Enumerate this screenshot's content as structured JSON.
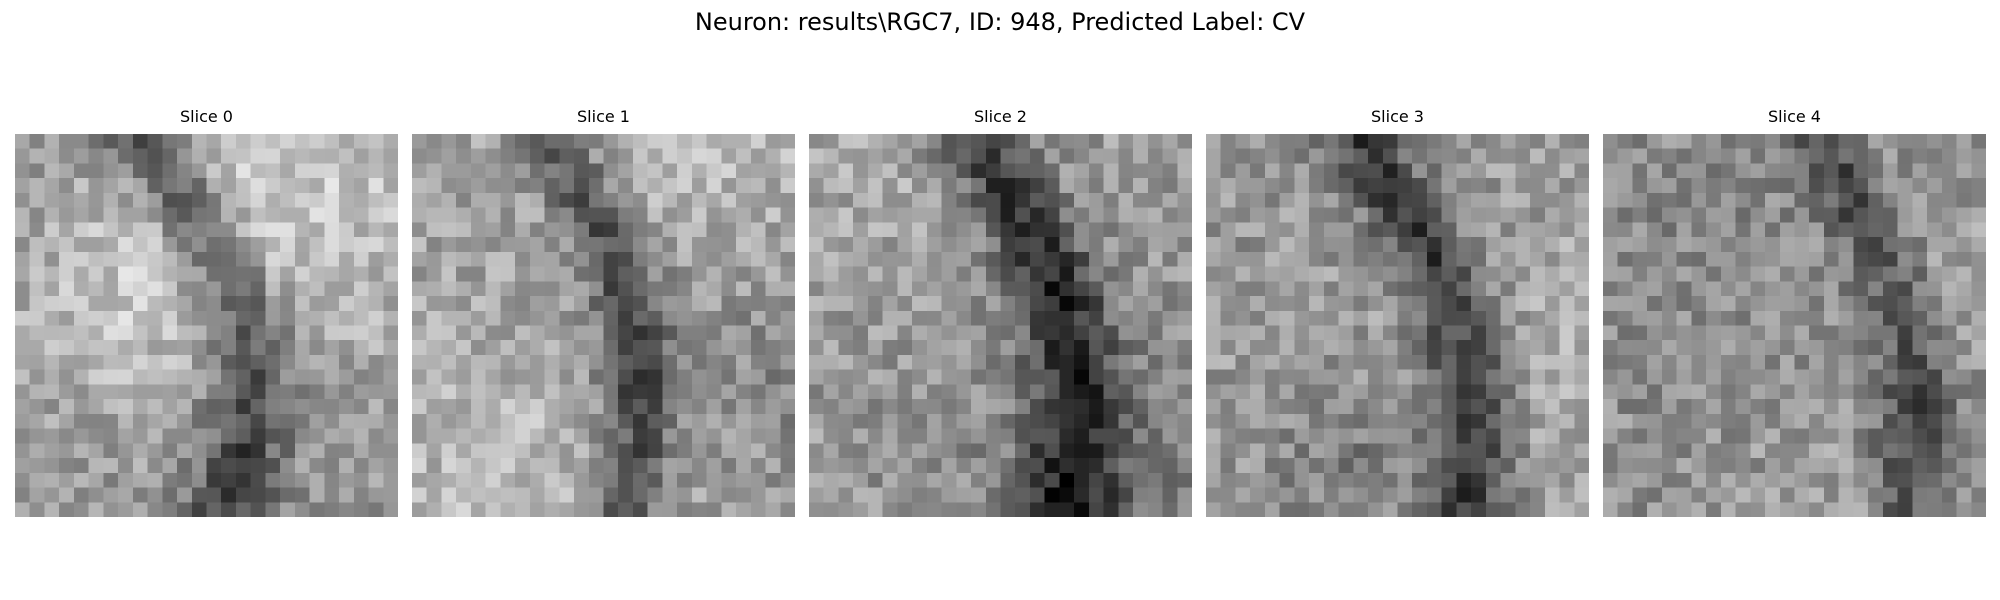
{
  "figure": {
    "title": "Neuron: results\\RGC7, ID: 948, Predicted Label: CV"
  },
  "slices": [
    {
      "label": "Slice 0"
    },
    {
      "label": "Slice 1"
    },
    {
      "label": "Slice 2"
    },
    {
      "label": "Slice 3"
    },
    {
      "label": "Slice 4"
    }
  ]
}
